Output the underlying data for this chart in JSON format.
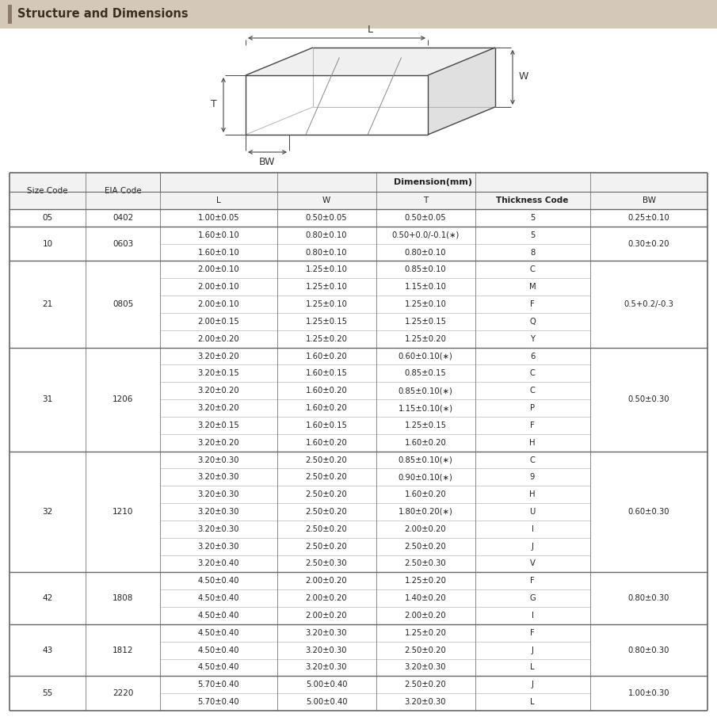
{
  "title": "Structure and Dimensions",
  "title_bar_color": "#d4c9b8",
  "title_text_color": "#3a3020",
  "dim_header": "Dimension(mm)",
  "col_headers": [
    "Size Code",
    "EIA Code",
    "L",
    "W",
    "T",
    "Thickness Code",
    "BW"
  ],
  "rows": [
    {
      "size": "05",
      "eia": "0402",
      "L": "1.00±0.05",
      "W": "0.50±0.05",
      "T": "0.50±0.05",
      "TC": "5",
      "BW": "0.25±0.10",
      "span": 1
    },
    {
      "size": "10",
      "eia": "0603",
      "L": "1.60±0.10",
      "W": "0.80±0.10",
      "T": "0.50+0.0/-0.1(∗)",
      "TC": "5",
      "BW": "0.30±0.20",
      "span": 2
    },
    {
      "size": "",
      "eia": "",
      "L": "1.60±0.10",
      "W": "0.80±0.10",
      "T": "0.80±0.10",
      "TC": "8",
      "BW": "",
      "span": 0
    },
    {
      "size": "21",
      "eia": "0805",
      "L": "2.00±0.10",
      "W": "1.25±0.10",
      "T": "0.85±0.10",
      "TC": "C",
      "BW": "0.5+0.2/-0.3",
      "span": 5
    },
    {
      "size": "",
      "eia": "",
      "L": "2.00±0.10",
      "W": "1.25±0.10",
      "T": "1.15±0.10",
      "TC": "M",
      "BW": "",
      "span": 0
    },
    {
      "size": "",
      "eia": "",
      "L": "2.00±0.10",
      "W": "1.25±0.10",
      "T": "1.25±0.10",
      "TC": "F",
      "BW": "",
      "span": 0
    },
    {
      "size": "",
      "eia": "",
      "L": "2.00±0.15",
      "W": "1.25±0.15",
      "T": "1.25±0.15",
      "TC": "Q",
      "BW": "",
      "span": 0
    },
    {
      "size": "",
      "eia": "",
      "L": "2.00±0.20",
      "W": "1.25±0.20",
      "T": "1.25±0.20",
      "TC": "Y",
      "BW": "",
      "span": 0
    },
    {
      "size": "31",
      "eia": "1206",
      "L": "3.20±0.20",
      "W": "1.60±0.20",
      "T": "0.60±0.10(∗)",
      "TC": "6",
      "BW": "0.50±0.30",
      "span": 6
    },
    {
      "size": "",
      "eia": "",
      "L": "3.20±0.15",
      "W": "1.60±0.15",
      "T": "0.85±0.15",
      "TC": "C",
      "BW": "",
      "span": 0
    },
    {
      "size": "",
      "eia": "",
      "L": "3.20±0.20",
      "W": "1.60±0.20",
      "T": "0.85±0.10(∗)",
      "TC": "C",
      "BW": "",
      "span": 0
    },
    {
      "size": "",
      "eia": "",
      "L": "3.20±0.20",
      "W": "1.60±0.20",
      "T": "1.15±0.10(∗)",
      "TC": "P",
      "BW": "",
      "span": 0
    },
    {
      "size": "",
      "eia": "",
      "L": "3.20±0.15",
      "W": "1.60±0.15",
      "T": "1.25±0.15",
      "TC": "F",
      "BW": "",
      "span": 0
    },
    {
      "size": "",
      "eia": "",
      "L": "3.20±0.20",
      "W": "1.60±0.20",
      "T": "1.60±0.20",
      "TC": "H",
      "BW": "",
      "span": 0
    },
    {
      "size": "32",
      "eia": "1210",
      "L": "3.20±0.30",
      "W": "2.50±0.20",
      "T": "0.85±0.10(∗)",
      "TC": "C",
      "BW": "0.60±0.30",
      "span": 7
    },
    {
      "size": "",
      "eia": "",
      "L": "3.20±0.30",
      "W": "2.50±0.20",
      "T": "0.90±0.10(∗)",
      "TC": "9",
      "BW": "",
      "span": 0
    },
    {
      "size": "",
      "eia": "",
      "L": "3.20±0.30",
      "W": "2.50±0.20",
      "T": "1.60±0.20",
      "TC": "H",
      "BW": "",
      "span": 0
    },
    {
      "size": "",
      "eia": "",
      "L": "3.20±0.30",
      "W": "2.50±0.20",
      "T": "1.80±0.20(∗)",
      "TC": "U",
      "BW": "",
      "span": 0
    },
    {
      "size": "",
      "eia": "",
      "L": "3.20±0.30",
      "W": "2.50±0.20",
      "T": "2.00±0.20",
      "TC": "I",
      "BW": "",
      "span": 0
    },
    {
      "size": "",
      "eia": "",
      "L": "3.20±0.30",
      "W": "2.50±0.20",
      "T": "2.50±0.20",
      "TC": "J",
      "BW": "",
      "span": 0
    },
    {
      "size": "",
      "eia": "",
      "L": "3.20±0.40",
      "W": "2.50±0.30",
      "T": "2.50±0.30",
      "TC": "V",
      "BW": "",
      "span": 0
    },
    {
      "size": "42",
      "eia": "1808",
      "L": "4.50±0.40",
      "W": "2.00±0.20",
      "T": "1.25±0.20",
      "TC": "F",
      "BW": "0.80±0.30",
      "span": 3
    },
    {
      "size": "",
      "eia": "",
      "L": "4.50±0.40",
      "W": "2.00±0.20",
      "T": "1.40±0.20",
      "TC": "G",
      "BW": "",
      "span": 0
    },
    {
      "size": "",
      "eia": "",
      "L": "4.50±0.40",
      "W": "2.00±0.20",
      "T": "2.00±0.20",
      "TC": "I",
      "BW": "",
      "span": 0
    },
    {
      "size": "43",
      "eia": "1812",
      "L": "4.50±0.40",
      "W": "3.20±0.30",
      "T": "1.25±0.20",
      "TC": "F",
      "BW": "0.80±0.30",
      "span": 3
    },
    {
      "size": "",
      "eia": "",
      "L": "4.50±0.40",
      "W": "3.20±0.30",
      "T": "2.50±0.20",
      "TC": "J",
      "BW": "",
      "span": 0
    },
    {
      "size": "",
      "eia": "",
      "L": "4.50±0.40",
      "W": "3.20±0.30",
      "T": "3.20±0.30",
      "TC": "L",
      "BW": "",
      "span": 0
    },
    {
      "size": "55",
      "eia": "2220",
      "L": "5.70±0.40",
      "W": "5.00±0.40",
      "T": "2.50±0.20",
      "TC": "J",
      "BW": "1.00±0.30",
      "span": 2
    },
    {
      "size": "",
      "eia": "",
      "L": "5.70±0.40",
      "W": "5.00±0.40",
      "T": "3.20±0.30",
      "TC": "L",
      "BW": "",
      "span": 0
    }
  ],
  "bg_color": "#ffffff",
  "text_color": "#222222",
  "header_bg": "#f2f2f2",
  "thin_line": "#bbbbbb",
  "thick_line": "#666666",
  "group_line": "#888888"
}
